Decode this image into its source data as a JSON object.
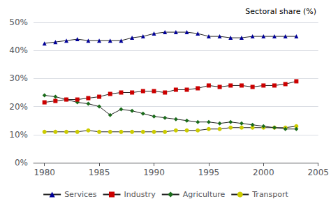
{
  "chart_data": {
    "type": "line",
    "ylabel": "Sectoral share (%)",
    "x": [
      1980,
      1981,
      1982,
      1983,
      1984,
      1985,
      1986,
      1987,
      1988,
      1989,
      1990,
      1991,
      1992,
      1993,
      1994,
      1995,
      1996,
      1997,
      1998,
      1999,
      2000,
      2001,
      2002,
      2003
    ],
    "color": "#222222",
    "series": [
      {
        "name": "Services",
        "color": "#000099",
        "marker": "triangle",
        "values": [
          42.5,
          43.0,
          43.5,
          44.0,
          43.5,
          43.5,
          43.5,
          43.5,
          44.5,
          45.0,
          46.0,
          46.5,
          46.5,
          46.5,
          46.0,
          45.0,
          45.0,
          44.5,
          44.5,
          45.0,
          45.0,
          45.0,
          45.0,
          45.0
        ]
      },
      {
        "name": "Industry",
        "color": "#cc0000",
        "marker": "square",
        "values": [
          21.5,
          22.0,
          22.5,
          22.5,
          23.0,
          23.5,
          24.5,
          25.0,
          25.0,
          25.5,
          25.5,
          25.0,
          26.0,
          26.0,
          26.5,
          27.5,
          27.0,
          27.5,
          27.5,
          27.0,
          27.5,
          27.5,
          28.0,
          29.0
        ]
      },
      {
        "name": "Agriculture",
        "color": "#1a6b1a",
        "marker": "diamond",
        "values": [
          24.0,
          23.5,
          22.5,
          21.5,
          21.0,
          20.0,
          17.0,
          19.0,
          18.5,
          17.5,
          16.5,
          16.0,
          15.5,
          15.0,
          14.5,
          14.5,
          14.0,
          14.5,
          14.0,
          13.5,
          13.0,
          12.5,
          12.0,
          12.0
        ]
      },
      {
        "name": "Transport",
        "color": "#cccc00",
        "marker": "circle",
        "values": [
          11.0,
          11.0,
          11.0,
          11.0,
          11.5,
          11.0,
          11.0,
          11.0,
          11.0,
          11.0,
          11.0,
          11.0,
          11.5,
          11.5,
          11.5,
          12.0,
          12.0,
          12.5,
          12.5,
          12.5,
          12.5,
          12.5,
          12.5,
          13.0
        ]
      }
    ],
    "xlim": [
      1979,
      2005
    ],
    "xticks": [
      1980,
      1985,
      1990,
      1995,
      2000,
      2005
    ],
    "ylim": [
      0,
      50
    ],
    "yticks": [
      {
        "value": 0,
        "label": "0%"
      },
      {
        "value": 10,
        "label": "10%"
      },
      {
        "value": 20,
        "label": "20%"
      },
      {
        "value": 30,
        "label": "30%"
      },
      {
        "value": 40,
        "label": "40%"
      },
      {
        "value": 50,
        "label": "50%"
      }
    ],
    "grid": true,
    "legend": "bottom"
  }
}
